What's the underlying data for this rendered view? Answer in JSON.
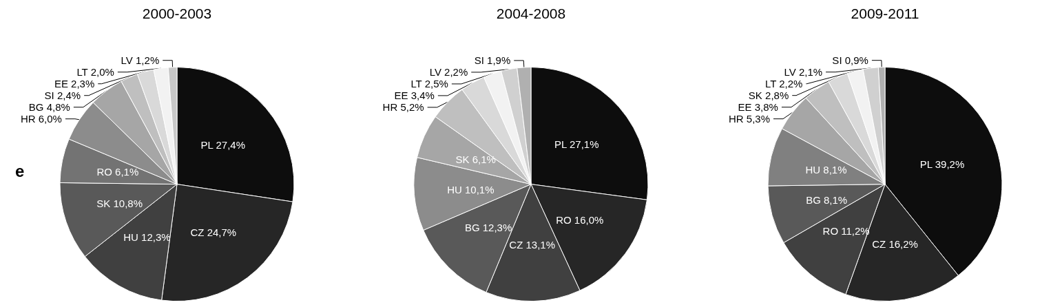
{
  "chart_data": [
    {
      "type": "pie",
      "title": "2000-2003",
      "categories": [
        "PL",
        "CZ",
        "HU",
        "SK",
        "RO",
        "HR",
        "BG",
        "SI",
        "EE",
        "LT",
        "LV"
      ],
      "values": [
        27.4,
        24.7,
        12.3,
        10.8,
        6.1,
        6.0,
        4.8,
        2.4,
        2.3,
        2.0,
        1.2
      ],
      "value_labels": [
        "27,4%",
        "24,7%",
        "12,3%",
        "10,8%",
        "6,1%",
        "6,0%",
        "4,8%",
        "2,4%",
        "2,3%",
        "2,0%",
        "1,2%"
      ],
      "colors": [
        "#0d0d0d",
        "#262626",
        "#404040",
        "#595959",
        "#737373",
        "#8c8c8c",
        "#a6a6a6",
        "#bfbfbf",
        "#d9d9d9",
        "#f2f2f2",
        "#c8c8c8"
      ],
      "annotations": [
        "e"
      ]
    },
    {
      "type": "pie",
      "title": "2004-2008",
      "categories": [
        "PL",
        "RO",
        "CZ",
        "BG",
        "HU",
        "SK",
        "HR",
        "EE",
        "LT",
        "LV",
        "SI"
      ],
      "values": [
        27.1,
        16.0,
        13.1,
        12.3,
        10.1,
        6.1,
        5.2,
        3.4,
        2.5,
        2.2,
        1.9
      ],
      "value_labels": [
        "27,1%",
        "16,0%",
        "13,1%",
        "12,3%",
        "10,1%",
        "6,1%",
        "5,2%",
        "3,4%",
        "2,5%",
        "2,2%",
        "1,9%"
      ],
      "colors": [
        "#0d0d0d",
        "#262626",
        "#404040",
        "#595959",
        "#8c8c8c",
        "#a6a6a6",
        "#bfbfbf",
        "#d9d9d9",
        "#f2f2f2",
        "#d0d0d0",
        "#b0b0b0"
      ]
    },
    {
      "type": "pie",
      "title": "2009-2011",
      "categories": [
        "PL",
        "CZ",
        "RO",
        "BG",
        "HU",
        "HR",
        "EE",
        "SK",
        "LT",
        "LV",
        "SI"
      ],
      "values": [
        39.2,
        16.2,
        11.2,
        8.1,
        8.1,
        5.3,
        3.8,
        2.8,
        2.2,
        2.1,
        0.9
      ],
      "value_labels": [
        "39,2%",
        "16,2%",
        "11,2%",
        "8,1%",
        "8,1%",
        "5,3%",
        "3,8%",
        "2,8%",
        "2,2%",
        "2,1%",
        "0,9%"
      ],
      "colors": [
        "#0d0d0d",
        "#262626",
        "#404040",
        "#595959",
        "#808080",
        "#a6a6a6",
        "#bfbfbf",
        "#d9d9d9",
        "#f2f2f2",
        "#d0d0d0",
        "#b0b0b0"
      ]
    }
  ]
}
